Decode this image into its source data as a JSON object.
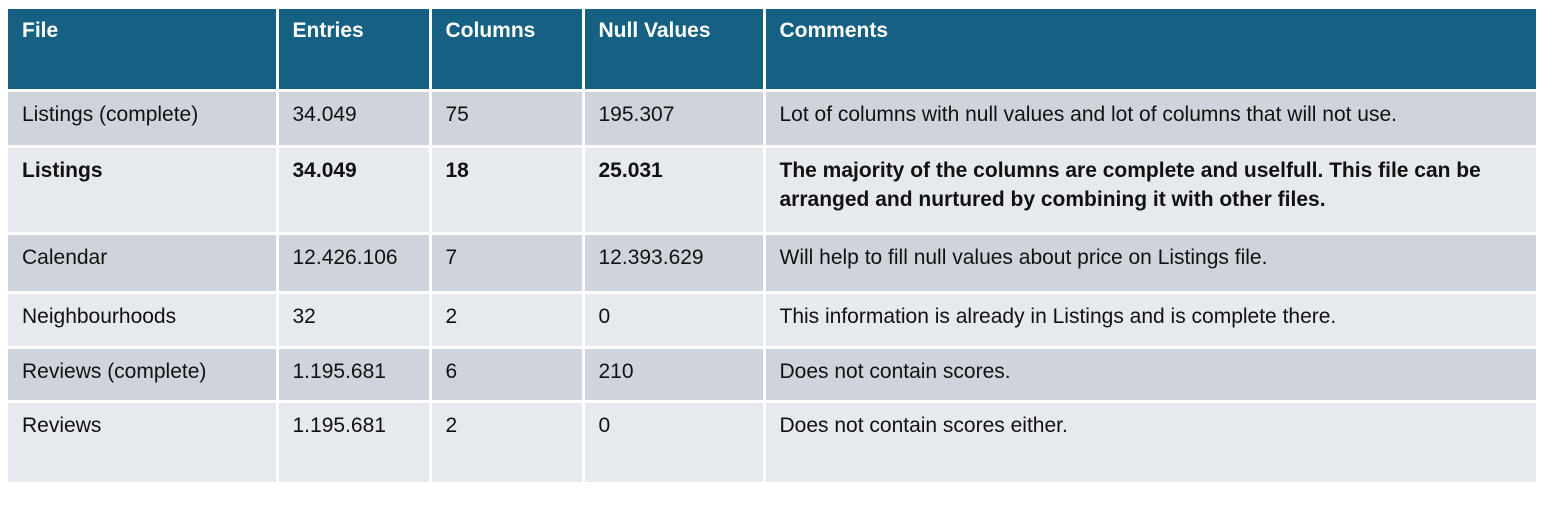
{
  "table": {
    "headers": {
      "file": "File",
      "entries": "Entries",
      "columns": "Columns",
      "null_values": "Null Values",
      "comments": "Comments"
    },
    "rows": [
      {
        "file": "Listings (complete)",
        "entries": "34.049",
        "columns": "75",
        "null_values": "195.307",
        "comments": "Lot of columns with null values and lot of columns that will not use."
      },
      {
        "file": "Listings",
        "entries": "34.049",
        "columns": "18",
        "null_values": "25.031",
        "comments": "The majority of the columns are complete and uselfull. This file can be arranged and nurtured by combining it with other files."
      },
      {
        "file": "Calendar",
        "entries": "12.426.106",
        "columns": "7",
        "null_values": "12.393.629",
        "comments": "Will help to fill null values about price on Listings file."
      },
      {
        "file": "Neighbourhoods",
        "entries": "32",
        "columns": "2",
        "null_values": "0",
        "comments": "This information is already in Listings and is complete there."
      },
      {
        "file": "Reviews (complete)",
        "entries": "1.195.681",
        "columns": "6",
        "null_values": "210",
        "comments": "Does not contain scores."
      },
      {
        "file": "Reviews",
        "entries": "1.195.681",
        "columns": "2",
        "null_values": "0",
        "comments": "Does not contain scores either."
      }
    ]
  },
  "colors": {
    "header_bg": "#166083",
    "row_odd_bg": "#cfd4dc",
    "row_even_bg": "#e6e9ed"
  }
}
